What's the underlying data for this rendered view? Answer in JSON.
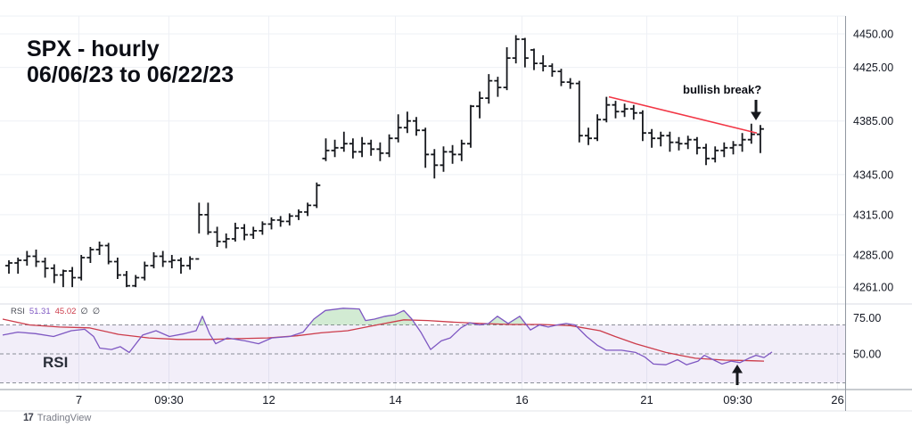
{
  "header": {
    "symbol_line": "SPX - hourly",
    "range_line": "06/06/23 to 06/22/23"
  },
  "price_pane": {
    "annotation_label": "bullish break?",
    "price_arrow_glyph": "↓"
  },
  "rsi_pane": {
    "pane_label": "RSI",
    "rsi_arrow_glyph": "↑",
    "legend": {
      "name": "RSI",
      "rsi_value": "51.31",
      "ma_value": "45.02",
      "param1": "∅",
      "param2": "∅"
    }
  },
  "footer": {
    "logo_glyph": "17",
    "brand": "TradingView"
  },
  "colors": {
    "bar": "#16181d",
    "trendline": "#f23645",
    "rsi_line": "#7e57c2",
    "rsi_ma": "#cc3b4a",
    "band_fill": "#7e57c2",
    "overbought_fill": "#4caf50",
    "grid": "#eef0f5",
    "level_dash": "#8b8e98",
    "pane_separator": "#d8dbe3",
    "axis_line": "#9198a1",
    "footer_rule": "#e3e5e9",
    "text": "#131722"
  },
  "chart_data": [
    {
      "type": "bar",
      "title": "SPX - hourly",
      "subtitle": "06/06/23 to 06/22/23",
      "annotation": {
        "text": "bullish break?",
        "arrow": "down"
      },
      "ylim": [
        4255,
        4463
      ],
      "price_axis_ticks": [
        4450,
        4425,
        4385,
        4345,
        4315,
        4285,
        4261
      ],
      "time_axis_ticks": [
        "7",
        "09:30",
        "12",
        "14",
        "16",
        "21",
        "09:30",
        "26"
      ],
      "trendline": {
        "x1": 683,
        "price1": 4403,
        "x2": 849,
        "price2": 4376
      },
      "bars_ohlc": [
        [
          4277,
          4281,
          4271,
          4279
        ],
        [
          4279,
          4283,
          4271,
          4281
        ],
        [
          4281,
          4288,
          4277,
          4284
        ],
        [
          4284,
          4289,
          4276,
          4280
        ],
        [
          4280,
          4283,
          4268,
          4275
        ],
        [
          4275,
          4278,
          4264,
          4270
        ],
        [
          4270,
          4274,
          4261,
          4273
        ],
        [
          4273,
          4276,
          4261,
          4268
        ],
        [
          4268,
          4285,
          4266,
          4283
        ],
        [
          4283,
          4291,
          4279,
          4289
        ],
        [
          4289,
          4295,
          4285,
          4292
        ],
        [
          4292,
          4294,
          4278,
          4280
        ],
        [
          4280,
          4283,
          4267,
          4270
        ],
        [
          4270,
          4273,
          4261,
          4262
        ],
        [
          4262,
          4270,
          4261,
          4268
        ],
        [
          4268,
          4280,
          4266,
          4277
        ],
        [
          4277,
          4287,
          4275,
          4284
        ],
        [
          4284,
          4288,
          4276,
          4280
        ],
        [
          4280,
          4285,
          4275,
          4281
        ],
        [
          4281,
          4283,
          4271,
          4277
        ],
        [
          4277,
          4284,
          4274,
          4282
        ],
        [
          4282,
          4324,
          4301,
          4315
        ],
        [
          4315,
          4324,
          4300,
          4302
        ],
        [
          4302,
          4306,
          4291,
          4295
        ],
        [
          4295,
          4301,
          4290,
          4297
        ],
        [
          4297,
          4309,
          4295,
          4305
        ],
        [
          4305,
          4308,
          4296,
          4300
        ],
        [
          4300,
          4306,
          4297,
          4303
        ],
        [
          4303,
          4310,
          4300,
          4308
        ],
        [
          4308,
          4313,
          4304,
          4311
        ],
        [
          4311,
          4314,
          4306,
          4310
        ],
        [
          4310,
          4316,
          4307,
          4314
        ],
        [
          4314,
          4319,
          4311,
          4317
        ],
        [
          4317,
          4324,
          4314,
          4322
        ],
        [
          4322,
          4339,
          4320,
          4337
        ],
        [
          4357,
          4372,
          4355,
          4363
        ],
        [
          4363,
          4371,
          4358,
          4365
        ],
        [
          4365,
          4377,
          4362,
          4368
        ],
        [
          4368,
          4372,
          4357,
          4362
        ],
        [
          4362,
          4373,
          4358,
          4368
        ],
        [
          4368,
          4371,
          4359,
          4364
        ],
        [
          4364,
          4369,
          4355,
          4361
        ],
        [
          4361,
          4375,
          4358,
          4372
        ],
        [
          4372,
          4390,
          4369,
          4380
        ],
        [
          4380,
          4392,
          4376,
          4385
        ],
        [
          4385,
          4388,
          4374,
          4378
        ],
        [
          4378,
          4380,
          4350,
          4360
        ],
        [
          4360,
          4364,
          4342,
          4352
        ],
        [
          4352,
          4366,
          4347,
          4362
        ],
        [
          4362,
          4367,
          4353,
          4360
        ],
        [
          4360,
          4371,
          4355,
          4368
        ],
        [
          4368,
          4397,
          4365,
          4396
        ],
        [
          4396,
          4407,
          4387,
          4402
        ],
        [
          4402,
          4420,
          4398,
          4415
        ],
        [
          4415,
          4418,
          4403,
          4410
        ],
        [
          4410,
          4440,
          4408,
          4432
        ],
        [
          4432,
          4449,
          4428,
          4446
        ],
        [
          4446,
          4447,
          4425,
          4432
        ],
        [
          4438,
          4439,
          4423,
          4428
        ],
        [
          4428,
          4434,
          4422,
          4426
        ],
        [
          4426,
          4428,
          4418,
          4422
        ],
        [
          4422,
          4424,
          4411,
          4414
        ],
        [
          4414,
          4417,
          4409,
          4413
        ],
        [
          4413,
          4415,
          4369,
          4374
        ],
        [
          4374,
          4380,
          4367,
          4372
        ],
        [
          4372,
          4390,
          4370,
          4386
        ],
        [
          4386,
          4403,
          4384,
          4397
        ],
        [
          4397,
          4400,
          4387,
          4392
        ],
        [
          4392,
          4398,
          4388,
          4394
        ],
        [
          4394,
          4397,
          4386,
          4391
        ],
        [
          4391,
          4393,
          4370,
          4376
        ],
        [
          4376,
          4379,
          4365,
          4372
        ],
        [
          4372,
          4377,
          4366,
          4374
        ],
        [
          4374,
          4377,
          4362,
          4369
        ],
        [
          4369,
          4373,
          4363,
          4368
        ],
        [
          4368,
          4374,
          4364,
          4371
        ],
        [
          4371,
          4373,
          4360,
          4365
        ],
        [
          4365,
          4368,
          4352,
          4357
        ],
        [
          4357,
          4366,
          4354,
          4363
        ],
        [
          4363,
          4369,
          4358,
          4365
        ],
        [
          4365,
          4370,
          4360,
          4367
        ],
        [
          4367,
          4376,
          4362,
          4371
        ],
        [
          4371,
          4383,
          4368,
          4375
        ],
        [
          4375,
          4382,
          4361,
          4379
        ]
      ]
    },
    {
      "type": "line",
      "title": "RSI",
      "ylim": [
        25,
        85
      ],
      "levels": [
        70,
        50,
        30
      ],
      "axis_ticks": [
        75,
        50
      ],
      "series": [
        {
          "name": "RSI",
          "color": "#7e57c2",
          "last_value": 51.31,
          "points": [
            [
              3,
              63
            ],
            [
              20,
              65
            ],
            [
              40,
              64
            ],
            [
              60,
              62
            ],
            [
              80,
              66
            ],
            [
              95,
              67
            ],
            [
              105,
              62
            ],
            [
              112,
              54
            ],
            [
              125,
              53
            ],
            [
              135,
              55
            ],
            [
              145,
              51
            ],
            [
              160,
              63
            ],
            [
              175,
              66
            ],
            [
              190,
              62
            ],
            [
              207,
              64
            ],
            [
              220,
              66
            ],
            [
              227,
              76
            ],
            [
              235,
              64
            ],
            [
              242,
              57
            ],
            [
              255,
              61
            ],
            [
              275,
              59
            ],
            [
              290,
              57
            ],
            [
              305,
              61
            ],
            [
              325,
              62
            ],
            [
              340,
              65
            ],
            [
              352,
              74
            ],
            [
              365,
              80
            ],
            [
              385,
              81.5
            ],
            [
              403,
              81
            ],
            [
              410,
              73
            ],
            [
              420,
              74
            ],
            [
              432,
              76
            ],
            [
              443,
              77
            ],
            [
              453,
              80
            ],
            [
              462,
              74
            ],
            [
              472,
              65
            ],
            [
              483,
              53
            ],
            [
              495,
              59
            ],
            [
              505,
              61
            ],
            [
              517,
              68
            ],
            [
              527,
              71.5
            ],
            [
              538,
              70
            ],
            [
              548,
              71
            ],
            [
              558,
              76
            ],
            [
              570,
              71
            ],
            [
              583,
              76
            ],
            [
              595,
              66.5
            ],
            [
              605,
              70
            ],
            [
              615,
              68.5
            ],
            [
              625,
              70
            ],
            [
              635,
              71
            ],
            [
              645,
              70
            ],
            [
              658,
              62
            ],
            [
              670,
              56
            ],
            [
              680,
              52.5
            ],
            [
              697,
              52.5
            ],
            [
              713,
              51
            ],
            [
              723,
              48
            ],
            [
              733,
              43
            ],
            [
              747,
              42.5
            ],
            [
              760,
              46
            ],
            [
              770,
              42.5
            ],
            [
              783,
              45
            ],
            [
              790,
              49
            ],
            [
              800,
              46
            ],
            [
              810,
              43
            ],
            [
              820,
              45
            ],
            [
              830,
              44
            ],
            [
              840,
              47
            ],
            [
              848,
              49
            ],
            [
              857,
              47.5
            ],
            [
              866,
              51.3
            ]
          ]
        },
        {
          "name": "RSI MA",
          "color": "#cc3b4a",
          "last_value": 45.02,
          "points": [
            [
              3,
              74
            ],
            [
              33,
              70
            ],
            [
              67,
              68.5
            ],
            [
              100,
              68
            ],
            [
              133,
              63.5
            ],
            [
              167,
              61
            ],
            [
              200,
              60
            ],
            [
              233,
              60
            ],
            [
              267,
              60.5
            ],
            [
              300,
              61
            ],
            [
              333,
              62.5
            ],
            [
              360,
              64.5
            ],
            [
              390,
              66
            ],
            [
              423,
              70
            ],
            [
              453,
              73.5
            ],
            [
              480,
              73
            ],
            [
              507,
              72
            ],
            [
              540,
              71
            ],
            [
              573,
              70.3
            ],
            [
              607,
              70.3
            ],
            [
              640,
              69.5
            ],
            [
              673,
              66
            ],
            [
              690,
              62
            ],
            [
              713,
              57
            ],
            [
              747,
              51
            ],
            [
              763,
              49
            ],
            [
              780,
              47
            ],
            [
              797,
              46.3
            ],
            [
              813,
              45.7
            ],
            [
              830,
              45.5
            ],
            [
              847,
              45.2
            ],
            [
              857,
              45
            ]
          ]
        }
      ]
    }
  ]
}
